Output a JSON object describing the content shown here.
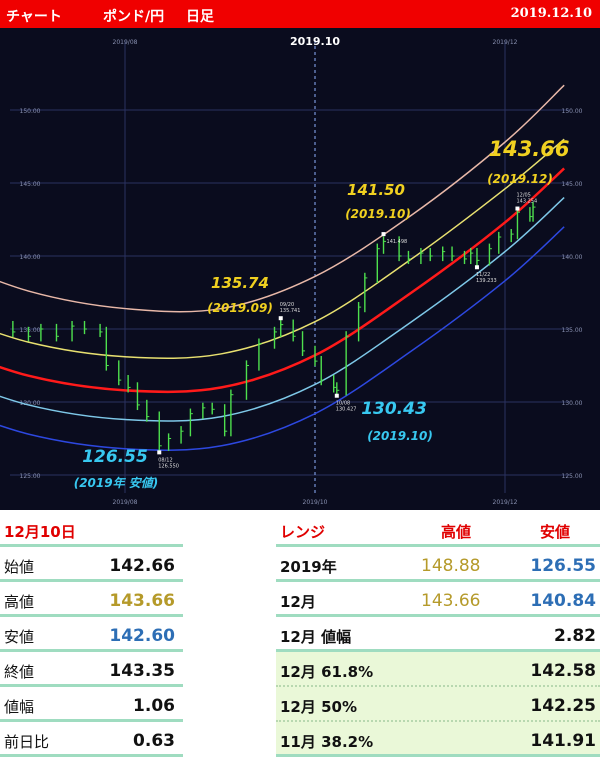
{
  "header": {
    "left": "チャート",
    "pair": "ポンド/円",
    "period": "日足",
    "date": "2019.12.10"
  },
  "chart_data": {
    "type": "candlestick",
    "title": "2019.10",
    "x_ticks": [
      "2019/08",
      "2019/10",
      "2019/12"
    ],
    "y_ticks": [
      "125.00",
      "130.00",
      "135.00",
      "140.00",
      "145.00",
      "150.00"
    ],
    "ylim": [
      124,
      152
    ],
    "xlim": [
      "2019-06-01",
      "2019-12-20"
    ],
    "grid": true,
    "closes": [
      [
        "2019-06-03",
        136.0
      ],
      [
        "2019-06-07",
        136.2
      ],
      [
        "2019-06-12",
        135.8
      ],
      [
        "2019-06-17",
        135.5
      ],
      [
        "2019-06-21",
        135.2
      ],
      [
        "2019-06-26",
        134.8
      ],
      [
        "2019-07-01",
        134.5
      ],
      [
        "2019-07-05",
        135.0
      ],
      [
        "2019-07-10",
        134.5
      ],
      [
        "2019-07-15",
        135.2
      ],
      [
        "2019-07-19",
        135.0
      ],
      [
        "2019-07-24",
        134.8
      ],
      [
        "2019-07-26",
        132.5
      ],
      [
        "2019-07-30",
        131.5
      ],
      [
        "2019-08-02",
        131.0
      ],
      [
        "2019-08-05",
        129.8
      ],
      [
        "2019-08-08",
        129.0
      ],
      [
        "2019-08-12",
        127.0
      ],
      [
        "2019-08-15",
        127.5
      ],
      [
        "2019-08-19",
        128.0
      ],
      [
        "2019-08-22",
        129.2
      ],
      [
        "2019-08-26",
        129.6
      ],
      [
        "2019-08-29",
        129.5
      ],
      [
        "2019-09-02",
        128.0
      ],
      [
        "2019-09-04",
        130.5
      ],
      [
        "2019-09-09",
        132.5
      ],
      [
        "2019-09-13",
        134.0
      ],
      [
        "2019-09-18",
        134.8
      ],
      [
        "2019-09-20",
        135.3
      ],
      [
        "2019-09-24",
        134.5
      ],
      [
        "2019-09-27",
        133.5
      ],
      [
        "2019-10-01",
        132.8
      ],
      [
        "2019-10-03",
        131.5
      ],
      [
        "2019-10-07",
        131.0
      ],
      [
        "2019-10-08",
        130.8
      ],
      [
        "2019-10-11",
        134.5
      ],
      [
        "2019-10-15",
        136.5
      ],
      [
        "2019-10-17",
        138.5
      ],
      [
        "2019-10-21",
        140.5
      ],
      [
        "2019-10-23",
        141.0
      ],
      [
        "2019-10-28",
        140.0
      ],
      [
        "2019-10-31",
        139.8
      ],
      [
        "2019-11-04",
        140.2
      ],
      [
        "2019-11-07",
        140.0
      ],
      [
        "2019-11-11",
        140.3
      ],
      [
        "2019-11-14",
        140.0
      ],
      [
        "2019-11-18",
        139.8
      ],
      [
        "2019-11-20",
        140.2
      ],
      [
        "2019-11-22",
        139.7
      ],
      [
        "2019-11-26",
        140.5
      ],
      [
        "2019-11-29",
        141.3
      ],
      [
        "2019-12-03",
        141.5
      ],
      [
        "2019-12-05",
        143.0
      ],
      [
        "2019-12-09",
        142.7
      ],
      [
        "2019-12-10",
        143.35
      ]
    ],
    "bands": [
      {
        "color": "#e8b8a8",
        "values": [
          [
            "2019-06-01",
            140.0
          ],
          [
            "2019-07-01",
            137.6
          ],
          [
            "2019-08-01",
            136.4
          ],
          [
            "2019-09-01",
            136.4
          ],
          [
            "2019-10-01",
            138.6
          ],
          [
            "2019-11-01",
            142.8
          ],
          [
            "2019-12-01",
            147.8
          ],
          [
            "2019-12-20",
            151.7
          ]
        ]
      },
      {
        "color": "#e8e070",
        "values": [
          [
            "2019-06-01",
            136.3
          ],
          [
            "2019-07-01",
            134.1
          ],
          [
            "2019-08-01",
            133.1
          ],
          [
            "2019-09-01",
            133.3
          ],
          [
            "2019-10-01",
            135.5
          ],
          [
            "2019-11-01",
            139.8
          ],
          [
            "2019-12-01",
            144.6
          ],
          [
            "2019-12-20",
            148.0
          ]
        ]
      },
      {
        "color": "#ff1a1a",
        "values": [
          [
            "2019-06-01",
            134.0
          ],
          [
            "2019-07-01",
            131.8
          ],
          [
            "2019-08-01",
            130.8
          ],
          [
            "2019-09-01",
            131.0
          ],
          [
            "2019-10-01",
            133.2
          ],
          [
            "2019-11-01",
            137.5
          ],
          [
            "2019-12-01",
            142.3
          ],
          [
            "2019-12-20",
            146.0
          ]
        ]
      },
      {
        "color": "#7ec8e8",
        "values": [
          [
            "2019-06-01",
            132.0
          ],
          [
            "2019-07-01",
            129.8
          ],
          [
            "2019-08-01",
            128.8
          ],
          [
            "2019-09-01",
            129.0
          ],
          [
            "2019-10-01",
            131.2
          ],
          [
            "2019-11-01",
            135.5
          ],
          [
            "2019-12-01",
            140.3
          ],
          [
            "2019-12-20",
            144.0
          ]
        ]
      },
      {
        "color": "#2d48e0",
        "values": [
          [
            "2019-06-01",
            130.0
          ],
          [
            "2019-07-01",
            127.8
          ],
          [
            "2019-08-01",
            126.8
          ],
          [
            "2019-09-01",
            127.0
          ],
          [
            "2019-10-01",
            129.2
          ],
          [
            "2019-11-01",
            133.5
          ],
          [
            "2019-12-01",
            138.3
          ],
          [
            "2019-12-20",
            142.0
          ]
        ]
      }
    ],
    "markers": [
      {
        "date": "2019-08-12",
        "value": 126.55,
        "label1": "08/12",
        "label2": "126.550"
      },
      {
        "date": "2019-09-20",
        "value": 135.74,
        "label1": "09/20",
        "label2": "135.741"
      },
      {
        "date": "2019-10-08",
        "value": 130.43,
        "label1": "10/08",
        "label2": "130.427"
      },
      {
        "date": "2019-10-23",
        "value": 141.5,
        "label1": "",
        "label2": "141.498"
      },
      {
        "date": "2019-11-22",
        "value": 139.23,
        "label1": "11/22",
        "label2": "139.233"
      },
      {
        "date": "2019-12-05",
        "value": 143.25,
        "label1": "12/05",
        "label2": "143.254"
      }
    ],
    "annotations": [
      {
        "value": "126.55",
        "period": "(2019年 安値)",
        "color": "#38c8f0"
      },
      {
        "value": "135.74",
        "period": "(2019.09)",
        "color": "#f0d020"
      },
      {
        "value": "130.43",
        "period": "(2019.10)",
        "color": "#38c8f0"
      },
      {
        "value": "141.50",
        "period": "(2019.10)",
        "color": "#f0d020"
      },
      {
        "value": "143.66",
        "period": "(2019.12)",
        "color": "#f0d020"
      }
    ]
  },
  "daily": {
    "title": "12月10日",
    "rows": [
      {
        "label": "始値",
        "value": "142.66",
        "tone": ""
      },
      {
        "label": "高値",
        "value": "143.66",
        "tone": "gold"
      },
      {
        "label": "安値",
        "value": "142.60",
        "tone": "blue"
      },
      {
        "label": "終値",
        "value": "143.35",
        "tone": ""
      },
      {
        "label": "値幅",
        "value": "1.06",
        "tone": ""
      },
      {
        "label": "前日比",
        "value": "0.63",
        "tone": ""
      }
    ]
  },
  "range": {
    "title": "レンジ",
    "high_label": "高値",
    "low_label": "安値",
    "rows": [
      {
        "label": "2019年",
        "high": "148.88",
        "low": "126.55"
      },
      {
        "label": "12月",
        "high": "143.66",
        "low": "140.84"
      },
      {
        "label": "12月 値幅",
        "high": "",
        "low": "2.82"
      },
      {
        "label": "12月  61.8%",
        "high": "",
        "low": "142.58"
      },
      {
        "label": "12月  50%",
        "high": "",
        "low": "142.25"
      },
      {
        "label": "11月  38.2%",
        "high": "",
        "low": "141.91"
      }
    ]
  }
}
